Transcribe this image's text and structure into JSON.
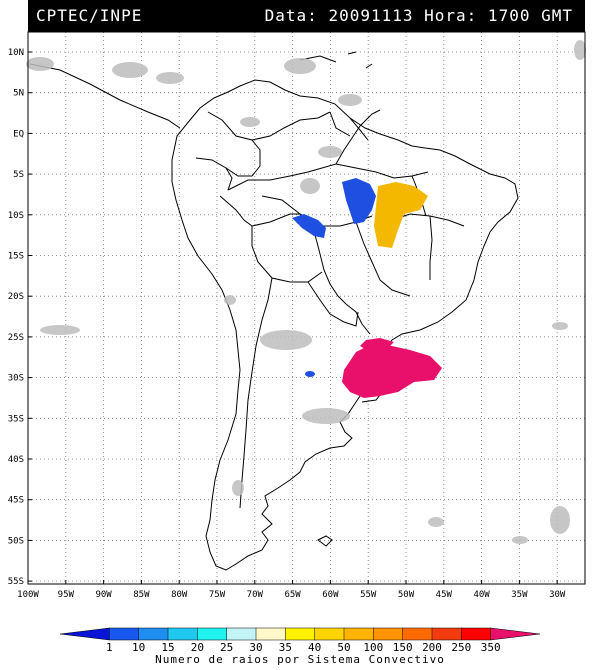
{
  "header": {
    "left": "CPTEC/INPE",
    "right": "Data: 20091113 Hora: 1700 GMT"
  },
  "map": {
    "lat_labels": [
      "10N",
      "5N",
      "EQ",
      "5S",
      "10S",
      "15S",
      "20S",
      "25S",
      "30S",
      "35S",
      "40S",
      "45S",
      "50S",
      "55S"
    ],
    "lon_labels": [
      "100W",
      "95W",
      "90W",
      "85W",
      "80W",
      "75W",
      "70W",
      "65W",
      "60W",
      "55W",
      "50W",
      "45W",
      "40W",
      "35W",
      "30W"
    ],
    "grid": "dotted",
    "colors": {
      "blue": "#1e4fe0",
      "orange": "#f5b800",
      "pink": "#e8106a",
      "cloud": "#bdbdbd"
    }
  },
  "colorbar": {
    "labels": [
      "1",
      "10",
      "15",
      "20",
      "25",
      "30",
      "35",
      "40",
      "50",
      "100",
      "150",
      "200",
      "250",
      "350"
    ],
    "colors": [
      "#0a14d4",
      "#1858ee",
      "#1e8ef0",
      "#1ec8ee",
      "#20f2ee",
      "#c4f4f6",
      "#fff8c8",
      "#fff200",
      "#ffd400",
      "#ffb400",
      "#ff9400",
      "#ff6a00",
      "#f23c10",
      "#ff0000",
      "#e8106a"
    ],
    "title": "Numero de raios por Sistema Convectivo"
  }
}
